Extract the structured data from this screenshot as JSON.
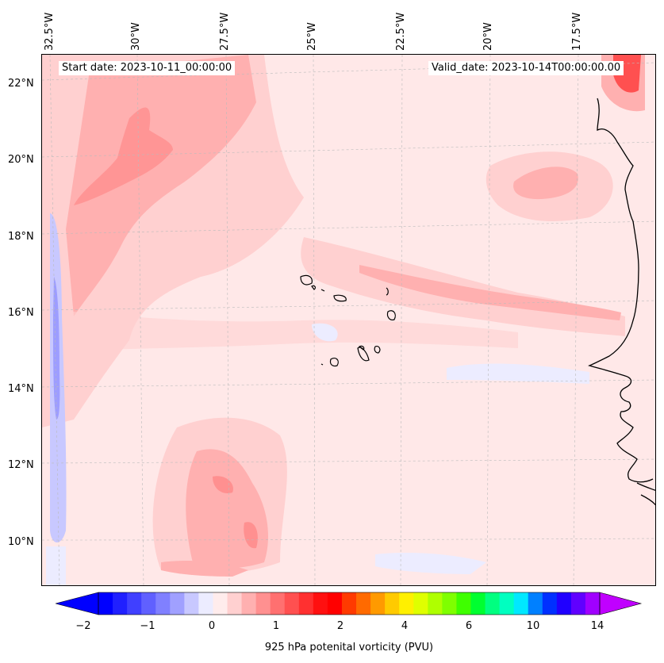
{
  "map": {
    "start_date": "Start date: 2023-10-11_00:00:00",
    "valid_date": "Valid_date: 2023-10-14T00:00:00.00",
    "lon_labels": [
      "32.5°W",
      "30°W",
      "27.5°W",
      "25°W",
      "22.5°W",
      "20°W",
      "17.5°W"
    ],
    "lat_labels": [
      "22°N",
      "20°N",
      "18°N",
      "16°N",
      "14°N",
      "12°N",
      "10°N"
    ],
    "colors": {
      "background": "#ffe8e8",
      "light_pink": "#ffd0d0",
      "pink": "#ffb0b0",
      "salmon": "#ff9090",
      "red": "#ff5050",
      "light_blue": "#e8e8ff",
      "blue": "#b0b0ff",
      "medium_blue": "#8080ff",
      "coastline": "#000000",
      "gridline": "#bbbbbb"
    }
  },
  "colorbar": {
    "label": "925 hPa potenital vorticity (PVU)",
    "ticks": [
      "−2",
      "−1",
      "0",
      "1",
      "2",
      "4",
      "6",
      "10",
      "14"
    ],
    "colors": [
      "#0000ff",
      "#2020ff",
      "#4040ff",
      "#6060ff",
      "#8080ff",
      "#a0a0ff",
      "#c8c8ff",
      "#ececff",
      "#ffecec",
      "#ffd0d0",
      "#ffb0b0",
      "#ff9090",
      "#ff7070",
      "#ff5050",
      "#ff3030",
      "#ff1010",
      "#ff0000",
      "#ff3a00",
      "#ff6a00",
      "#ff9a00",
      "#ffca00",
      "#fff000",
      "#dfff00",
      "#afff00",
      "#7fff00",
      "#3fff00",
      "#00ff30",
      "#00ff80",
      "#00ffc0",
      "#00e8ff",
      "#0080ff",
      "#0030ff",
      "#2000ff",
      "#6000ff",
      "#a000ff"
    ]
  }
}
